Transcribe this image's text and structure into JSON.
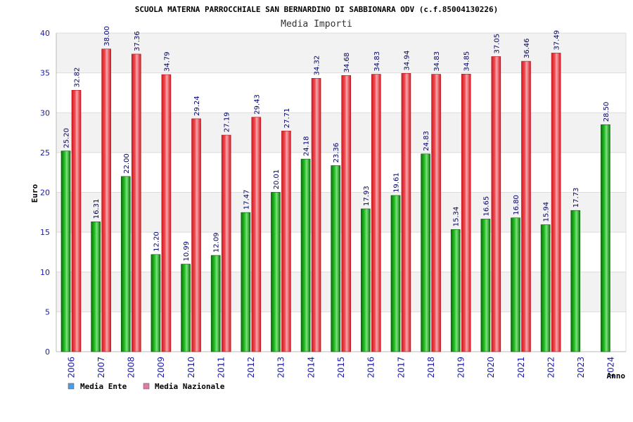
{
  "chart_data": {
    "type": "bar",
    "title": "SCUOLA MATERNA PARROCCHIALE SAN BERNARDINO DI SABBIONARA ODV (c.f.85004130226)",
    "subtitle": "Media Importi",
    "ylabel": "Euro",
    "xlabel": "Anno",
    "ylim": [
      0,
      40
    ],
    "yticks": [
      0,
      5,
      10,
      15,
      20,
      25,
      30,
      35,
      40
    ],
    "grid": true,
    "legend_position": "bottom-left",
    "categories": [
      "2006",
      "2007",
      "2008",
      "2009",
      "2010",
      "2011",
      "2012",
      "2013",
      "2014",
      "2015",
      "2016",
      "2017",
      "2018",
      "2019",
      "2020",
      "2021",
      "2022",
      "2023",
      "2024"
    ],
    "series": [
      {
        "name": "Media Ente",
        "color": "#1ea81e",
        "legend_color": "#4d9de0",
        "values": [
          25.2,
          16.31,
          22.0,
          12.2,
          10.99,
          12.09,
          17.47,
          20.01,
          24.18,
          23.36,
          17.93,
          19.61,
          24.83,
          15.34,
          16.65,
          16.8,
          15.94,
          17.73,
          28.5
        ],
        "labels": [
          "25.20",
          "16.31",
          "22.00",
          "12.20",
          "10.99",
          "12.09",
          "17.47",
          "20.01",
          "24.18",
          "23.36",
          "17.93",
          "19.61",
          "24.83",
          "15.34",
          "16.65",
          "16.80",
          "15.94",
          "17.73",
          "28.50"
        ]
      },
      {
        "name": "Media Nazionale",
        "color": "#e8202a",
        "legend_color": "#e07aa8",
        "values": [
          32.82,
          38.0,
          37.36,
          34.79,
          29.24,
          27.19,
          29.43,
          27.71,
          34.32,
          34.68,
          34.83,
          34.94,
          34.83,
          34.85,
          37.05,
          36.46,
          37.49,
          null,
          null
        ],
        "labels": [
          "32.82",
          "38.00",
          "37.36",
          "34.79",
          "29.24",
          "27.19",
          "29.43",
          "27.71",
          "34.32",
          "34.68",
          "34.83",
          "34.94",
          "34.83",
          "34.85",
          "37.05",
          "36.46",
          "37.49",
          "",
          ""
        ]
      }
    ]
  }
}
